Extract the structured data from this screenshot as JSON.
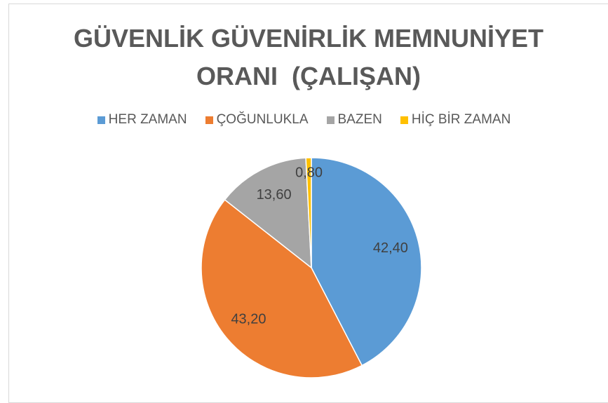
{
  "chart_data": {
    "type": "pie",
    "title": "GÜVENLİK GÜVENİRLİK MEMNUNİYET ORANI  (ÇALIŞAN)",
    "categories": [
      "HER ZAMAN",
      "ÇOĞUNLUKLA",
      "BAZEN",
      "HİÇ BİR ZAMAN"
    ],
    "values": [
      42.4,
      43.2,
      13.6,
      0.8
    ],
    "value_labels": [
      "42,40",
      "43,20",
      "13,60",
      "0,80"
    ],
    "colors": [
      "#5b9bd5",
      "#ed7d31",
      "#a5a5a5",
      "#ffc000"
    ],
    "legend": "top"
  }
}
